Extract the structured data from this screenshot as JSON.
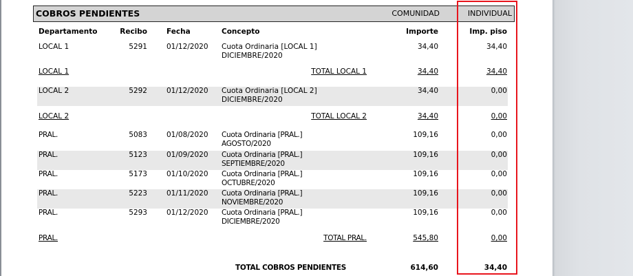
{
  "header": {
    "title": "COBROS PENDIENTES",
    "comunidad": "COMUNIDAD",
    "individual": "INDIVIDUAL"
  },
  "columns": {
    "departamento": "Departamento",
    "recibo": "Recibo",
    "fecha": "Fecha",
    "concepto": "Concepto",
    "importe": "Importe",
    "imp_piso": "Imp. piso"
  },
  "groups": [
    {
      "name": "LOCAL 1",
      "rows": [
        {
          "departamento": "LOCAL 1",
          "recibo": "5291",
          "fecha": "01/12/2020",
          "concepto_1": "Cuota Ordinaria [LOCAL 1]",
          "concepto_2": "DICIEMBRE/2020",
          "importe": "34,40",
          "imp_piso": "34,40",
          "shaded": false
        }
      ],
      "total": {
        "departamento": "LOCAL 1",
        "label": "TOTAL LOCAL 1",
        "importe": "34,40",
        "imp_piso": "34,40"
      }
    },
    {
      "name": "LOCAL 2",
      "rows": [
        {
          "departamento": "LOCAL 2",
          "recibo": "5292",
          "fecha": "01/12/2020",
          "concepto_1": "Cuota Ordinaria [LOCAL 2]",
          "concepto_2": "DICIEMBRE/2020",
          "importe": "34,40",
          "imp_piso": "0,00",
          "shaded": true
        }
      ],
      "total": {
        "departamento": "LOCAL 2",
        "label": "TOTAL LOCAL 2",
        "importe": "34,40",
        "imp_piso": "0,00"
      }
    },
    {
      "name": "PRAL.",
      "rows": [
        {
          "departamento": "PRAL.",
          "recibo": "5083",
          "fecha": "01/08/2020",
          "concepto_1": "Cuota Ordinaria [PRAL.]",
          "concepto_2": "AGOSTO/2020",
          "importe": "109,16",
          "imp_piso": "0,00",
          "shaded": false
        },
        {
          "departamento": "PRAL.",
          "recibo": "5123",
          "fecha": "01/09/2020",
          "concepto_1": "Cuota Ordinaria [PRAL.]",
          "concepto_2": "SEPTIEMBRE/2020",
          "importe": "109,16",
          "imp_piso": "0,00",
          "shaded": true
        },
        {
          "departamento": "PRAL.",
          "recibo": "5173",
          "fecha": "01/10/2020",
          "concepto_1": "Cuota Ordinaria [PRAL.]",
          "concepto_2": "OCTUBRE/2020",
          "importe": "109,16",
          "imp_piso": "0,00",
          "shaded": false
        },
        {
          "departamento": "PRAL.",
          "recibo": "5223",
          "fecha": "01/11/2020",
          "concepto_1": "Cuota Ordinaria [PRAL.]",
          "concepto_2": "NOVIEMBRE/2020",
          "importe": "109,16",
          "imp_piso": "0,00",
          "shaded": true
        },
        {
          "departamento": "PRAL.",
          "recibo": "5293",
          "fecha": "01/12/2020",
          "concepto_1": "Cuota Ordinaria [PRAL.]",
          "concepto_2": "DICIEMBRE/2020",
          "importe": "109,16",
          "imp_piso": "0,00",
          "shaded": false
        }
      ],
      "total": {
        "departamento": "PRAL.",
        "label": "TOTAL PRAL.",
        "importe": "545,80",
        "imp_piso": "0,00"
      }
    }
  ],
  "grand_total": {
    "label": "TOTAL COBROS PENDIENTES",
    "importe": "614,60",
    "imp_piso": "34,40"
  },
  "colors": {
    "highlight": "#e8141c",
    "header_bg": "#d4d4d4",
    "row_shade": "#e8e8e8"
  }
}
